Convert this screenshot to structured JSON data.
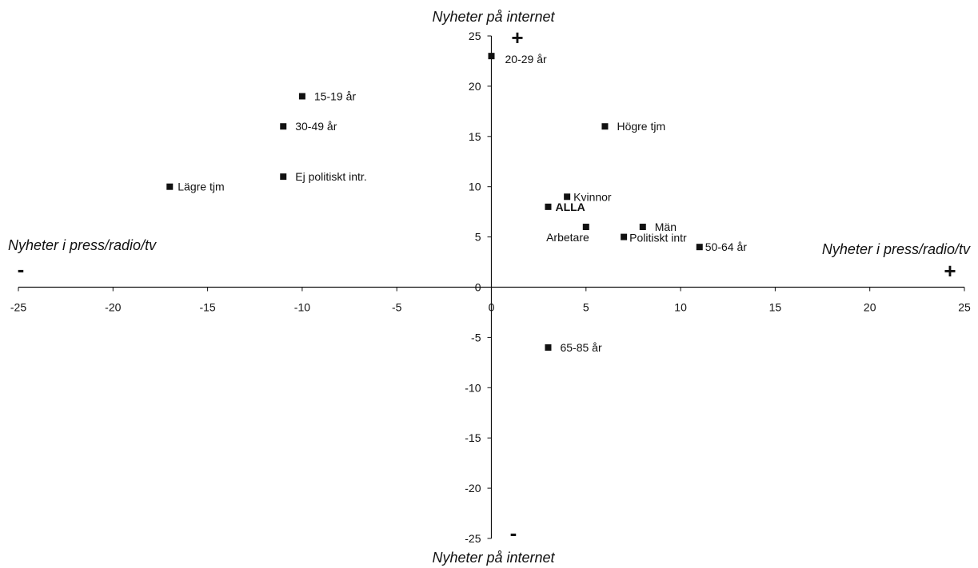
{
  "chart_data": {
    "type": "scatter",
    "title": "",
    "xlabel": "Nyheter i press/radio/tv",
    "ylabel": "Nyheter på internet",
    "xlim": [
      -25,
      25
    ],
    "ylim": [
      -25,
      25
    ],
    "xticks": [
      -25,
      -20,
      -15,
      -10,
      -5,
      0,
      5,
      10,
      15,
      20,
      25
    ],
    "yticks": [
      25,
      20,
      15,
      10,
      5,
      0,
      -5,
      -10,
      -15,
      -20,
      -25
    ],
    "grid": false,
    "axis_titles": {
      "top": "Nyheter på internet",
      "bottom": "Nyheter på internet",
      "left": "Nyheter i press/radio/tv",
      "right": "Nyheter i press/radio/tv"
    },
    "quadrant_signs": {
      "top": "+",
      "bottom": "-",
      "left": "-",
      "right": "+"
    },
    "points": [
      {
        "label": "20-29 år",
        "x": 0,
        "y": 23
      },
      {
        "label": "15-19 år",
        "x": -10,
        "y": 19
      },
      {
        "label": "30-49 år",
        "x": -11,
        "y": 16
      },
      {
        "label": "Högre tjm",
        "x": 6,
        "y": 16
      },
      {
        "label": "Ej politiskt intr.",
        "x": -11,
        "y": 11
      },
      {
        "label": "Lägre tjm",
        "x": -17,
        "y": 10
      },
      {
        "label": "Kvinnor",
        "x": 4,
        "y": 9
      },
      {
        "label": "ALLA",
        "x": 3,
        "y": 8
      },
      {
        "label": "Arbetare",
        "x": 5,
        "y": 6
      },
      {
        "label": "Män",
        "x": 8,
        "y": 6
      },
      {
        "label": "Politiskt intr",
        "x": 7,
        "y": 5
      },
      {
        "label": "50-64 år",
        "x": 11,
        "y": 4
      },
      {
        "label": "65-85 år",
        "x": 3,
        "y": -6
      }
    ]
  }
}
